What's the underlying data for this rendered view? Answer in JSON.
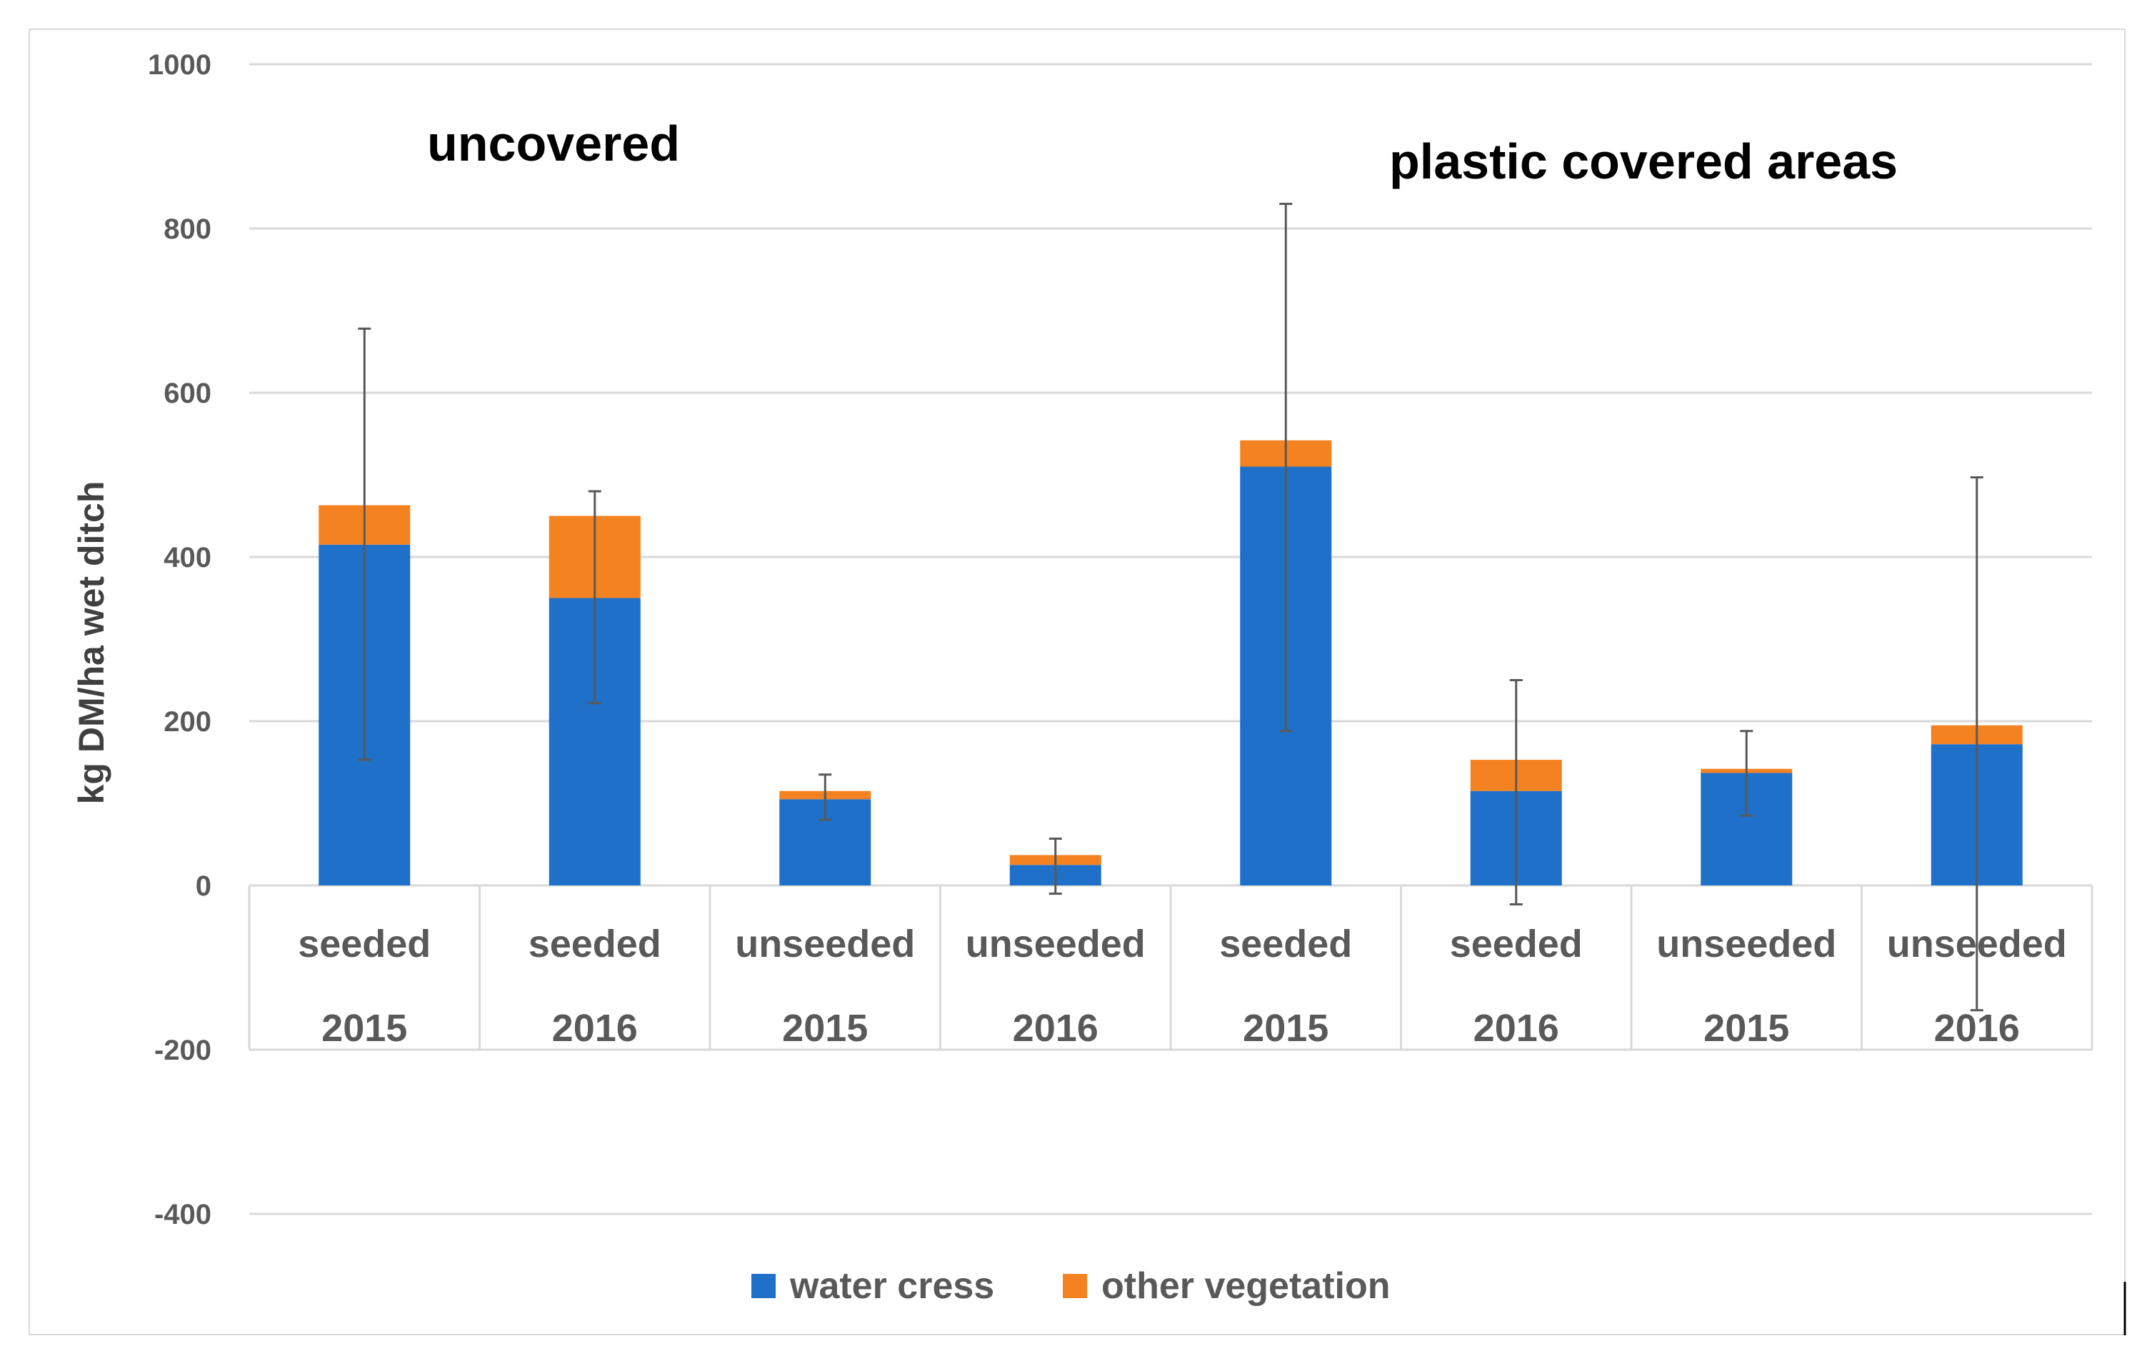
{
  "chart_data": {
    "type": "bar",
    "stacked": true,
    "categories": [
      {
        "line1": "seeded",
        "line2": "2015"
      },
      {
        "line1": "seeded",
        "line2": "2016"
      },
      {
        "line1": "unseeded",
        "line2": "2015"
      },
      {
        "line1": "unseeded",
        "line2": "2016"
      },
      {
        "line1": "seeded",
        "line2": "2015"
      },
      {
        "line1": "seeded",
        "line2": "2016"
      },
      {
        "line1": "unseeded",
        "line2": "2015"
      },
      {
        "line1": "unseeded",
        "line2": "2016"
      }
    ],
    "series": [
      {
        "name": "water cress",
        "color": "#1f70c9",
        "values": [
          415,
          350,
          105,
          25,
          510,
          115,
          137,
          172
        ]
      },
      {
        "name": "other vegetation",
        "color": "#f58220",
        "values": [
          48,
          100,
          10,
          12,
          32,
          38,
          5,
          23
        ]
      }
    ],
    "error_bars": [
      {
        "low": 153,
        "high": 678
      },
      {
        "low": 222,
        "high": 480
      },
      {
        "low": 80,
        "high": 135
      },
      {
        "low": -10,
        "high": 57
      },
      {
        "low": 188,
        "high": 830
      },
      {
        "low": -23,
        "high": 250
      },
      {
        "low": 85,
        "high": 188
      },
      {
        "low": -152,
        "high": 497
      }
    ],
    "ylabel": "kg DM/ha wet ditch",
    "ylim": [
      -400,
      1000
    ],
    "yticks": [
      1000,
      800,
      600,
      400,
      200,
      0,
      -200,
      -400
    ],
    "grid": true,
    "legend_position": "bottom",
    "annotations": [
      "uncovered",
      "plastic covered areas"
    ]
  }
}
